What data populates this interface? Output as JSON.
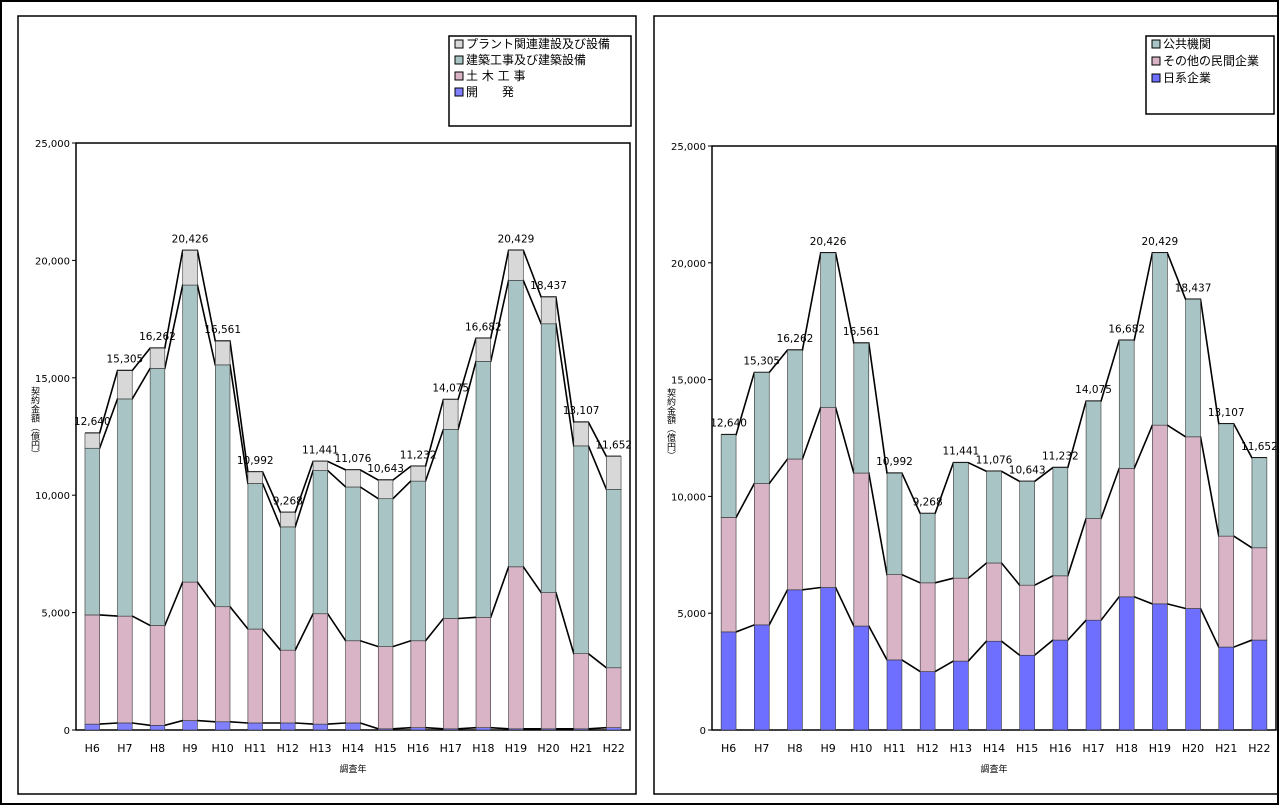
{
  "chart_data": [
    {
      "type": "bar",
      "stacked": true,
      "xlabel": "調査年",
      "ylabel": "契約金額（億円）",
      "ylim": [
        0,
        25000
      ],
      "yticks": [
        "0",
        "5,000",
        "10,000",
        "15,000",
        "20,000",
        "25,000"
      ],
      "legend_position": "top-right",
      "categories": [
        "H6",
        "H7",
        "H8",
        "H9",
        "H10",
        "H11",
        "H12",
        "H13",
        "H14",
        "H15",
        "H16",
        "H17",
        "H18",
        "H19",
        "H20",
        "H21",
        "H22"
      ],
      "total_labels": [
        "12,640",
        "15,305",
        "16,262",
        "20,426",
        "16,561",
        "10,992",
        "9,268",
        "11,441",
        "11,076",
        "10,643",
        "11,232",
        "14,075",
        "16,682",
        "20,429",
        "18,437",
        "13,107",
        "11,652"
      ],
      "totals": [
        12640,
        15305,
        16262,
        20426,
        16561,
        10992,
        9268,
        11441,
        11076,
        10643,
        11232,
        14075,
        16682,
        20429,
        18437,
        13107,
        11652
      ],
      "series": [
        {
          "name": "開　　発",
          "color": "#8080ff",
          "values": [
            250,
            300,
            200,
            400,
            350,
            300,
            300,
            250,
            300,
            50,
            100,
            50,
            100,
            50,
            50,
            50,
            100
          ]
        },
        {
          "name": "土 木 工 事",
          "color": "#d9b3c6",
          "values": [
            4650,
            4550,
            4250,
            5900,
            4900,
            4000,
            3100,
            4700,
            3500,
            3500,
            3700,
            4700,
            4700,
            6900,
            5800,
            3200,
            2550
          ]
        },
        {
          "name": "建築工事及び建築設備",
          "color": "#a9c4c4",
          "values": [
            7100,
            9250,
            10950,
            12650,
            10300,
            6200,
            5250,
            6100,
            6550,
            6300,
            6800,
            8050,
            10900,
            12200,
            11450,
            8850,
            7600
          ]
        },
        {
          "name": "プラント関連建設及び設備",
          "color": "#d8d8d8",
          "values": [
            640,
            1205,
            862,
            1476,
            1011,
            492,
            618,
            391,
            726,
            793,
            632,
            1275,
            982,
            1279,
            1137,
            1007,
            1402
          ]
        }
      ]
    },
    {
      "type": "bar",
      "stacked": true,
      "xlabel": "調査年",
      "ylabel": "契約金額（億円）",
      "ylim": [
        0,
        25000
      ],
      "yticks": [
        "0",
        "5,000",
        "10,000",
        "15,000",
        "20,000",
        "25,000"
      ],
      "legend_position": "top-right",
      "categories": [
        "H6",
        "H7",
        "H8",
        "H9",
        "H10",
        "H11",
        "H12",
        "H13",
        "H14",
        "H15",
        "H16",
        "H17",
        "H18",
        "H19",
        "H20",
        "H21",
        "H22"
      ],
      "total_labels": [
        "12,640",
        "15,305",
        "16,262",
        "20,426",
        "16,561",
        "10,992",
        "9,268",
        "11,441",
        "11,076",
        "10,643",
        "11,232",
        "14,075",
        "16,682",
        "20,429",
        "18,437",
        "13,107",
        "11,652"
      ],
      "totals": [
        12640,
        15305,
        16262,
        20426,
        16561,
        10992,
        9268,
        11441,
        11076,
        10643,
        11232,
        14075,
        16682,
        20429,
        18437,
        13107,
        11652
      ],
      "series": [
        {
          "name": "日系企業",
          "color": "#6f6fff",
          "values": [
            4200,
            4500,
            6000,
            6100,
            4450,
            3000,
            2500,
            2950,
            3800,
            3200,
            3850,
            4700,
            5700,
            5400,
            5200,
            3550,
            3850
          ]
        },
        {
          "name": "その他の民間企業",
          "color": "#d9b3c6",
          "values": [
            4900,
            6050,
            5600,
            7700,
            6550,
            3650,
            3800,
            3550,
            3350,
            3000,
            2750,
            4350,
            5500,
            7650,
            7350,
            4750,
            3950
          ]
        },
        {
          "name": "公共機関",
          "color": "#a9c4c4",
          "values": [
            3540,
            4755,
            4662,
            6626,
            5561,
            4342,
            2968,
            4941,
            3926,
            4443,
            4632,
            5025,
            5482,
            7379,
            5887,
            4807,
            3852
          ]
        }
      ]
    }
  ]
}
